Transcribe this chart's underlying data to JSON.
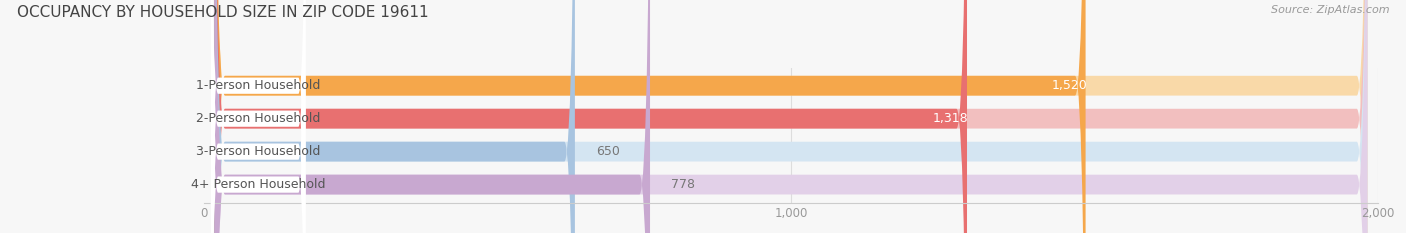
{
  "title": "OCCUPANCY BY HOUSEHOLD SIZE IN ZIP CODE 19611",
  "source": "Source: ZipAtlas.com",
  "categories": [
    "1-Person Household",
    "2-Person Household",
    "3-Person Household",
    "4+ Person Household"
  ],
  "values": [
    1520,
    1318,
    650,
    778
  ],
  "bar_colors": [
    "#F5A74B",
    "#E87070",
    "#A8C4E0",
    "#C8A8D0"
  ],
  "bar_bg_colors": [
    "#F9D9A8",
    "#F2BFBF",
    "#D4E5F2",
    "#E2D0E8"
  ],
  "xlim": [
    0,
    2000
  ],
  "xticks": [
    0,
    1000,
    2000
  ],
  "background_color": "#F7F7F7",
  "title_fontsize": 11,
  "label_fontsize": 9,
  "value_fontsize": 9,
  "source_fontsize": 8,
  "bar_height": 0.6
}
